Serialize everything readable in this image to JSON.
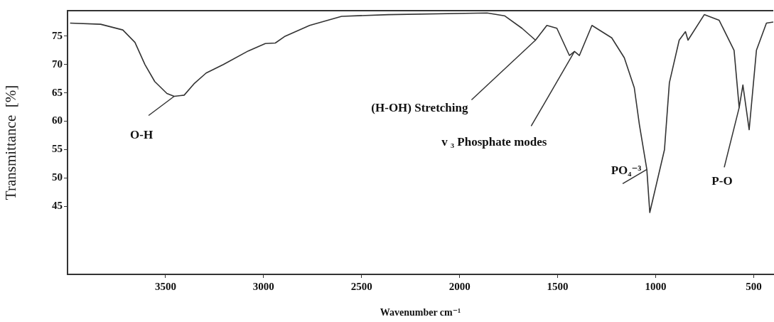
{
  "chart_data": {
    "type": "line",
    "xlabel": "Wavenumber cm⁻¹",
    "ylabel": "Transmittance  [%]",
    "xlim": [
      4000,
      400
    ],
    "ylim": [
      33,
      79.5
    ],
    "xticks": [
      3500,
      3000,
      2500,
      2000,
      1500,
      1000,
      500
    ],
    "yticks": [
      45,
      50,
      55,
      60,
      65,
      70,
      75
    ],
    "grid": false,
    "legend": false,
    "marker": "none",
    "line_style": "solid",
    "series": [
      {
        "color": "#333333",
        "x": [
          3987,
          3831,
          3718,
          3656,
          3605,
          3555,
          3493,
          3456,
          3405,
          3355,
          3293,
          3205,
          3078,
          2991,
          2940,
          2890,
          2765,
          2602,
          2365,
          1860,
          1771,
          1682,
          1613,
          1555,
          1504,
          1440,
          1414,
          1389,
          1325,
          1224,
          1160,
          1109,
          1083,
          1045,
          1030,
          955,
          930,
          880,
          848,
          835,
          752,
          676,
          600,
          574,
          555,
          523,
          486,
          435,
          400
        ],
        "values": [
          77.3,
          77.1,
          76.1,
          73.9,
          70.0,
          67.0,
          64.9,
          64.4,
          64.6,
          66.6,
          68.5,
          70.0,
          72.4,
          73.7,
          73.8,
          75.0,
          76.9,
          78.5,
          78.8,
          79.1,
          78.6,
          76.4,
          74.3,
          76.9,
          76.4,
          71.6,
          72.3,
          71.6,
          76.9,
          74.7,
          71.2,
          65.9,
          59.4,
          51.5,
          43.9,
          55.0,
          66.8,
          74.3,
          75.8,
          74.3,
          78.8,
          77.8,
          72.5,
          62.4,
          66.4,
          58.5,
          72.5,
          77.3,
          77.5
        ]
      }
    ],
    "annotations": [
      {
        "text": "O-H",
        "x": 3456,
        "y": 64.4
      },
      {
        "text": "(H-OH) Stretching",
        "x": 1613,
        "y": 74.3
      },
      {
        "text": "v ₃ Phosphate modes",
        "x": 1414,
        "y": 72.3
      },
      {
        "text": "PO₄⁻³",
        "x": 1045,
        "y": 51.5
      },
      {
        "text": "P-O",
        "x": 574,
        "y": 62.4
      }
    ]
  }
}
